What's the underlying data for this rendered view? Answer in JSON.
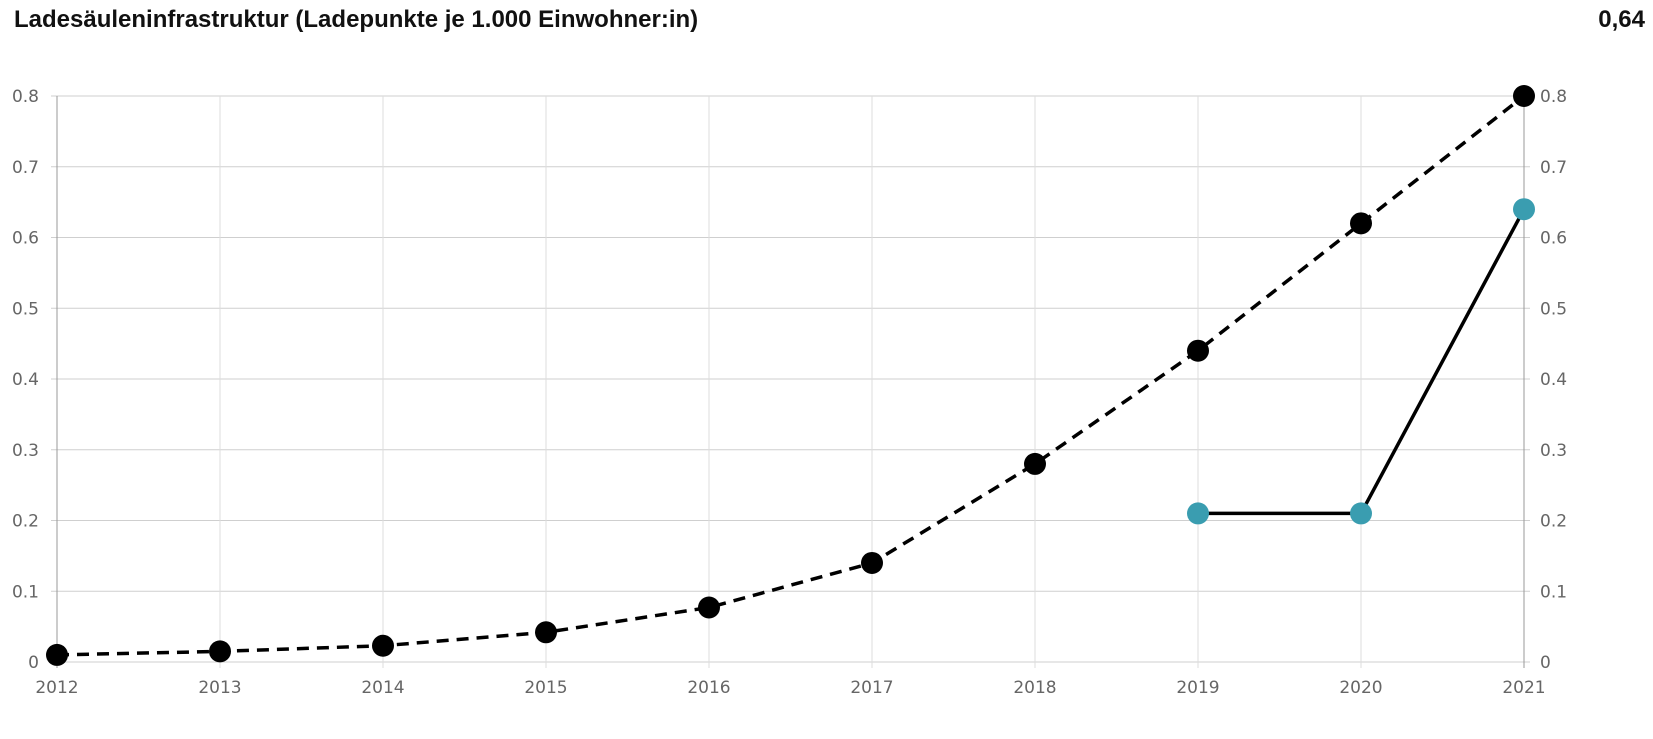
{
  "header": {
    "title": "Ladesäuleninfrastruktur (Ladepunkte je 1.000 Einwohner:in)",
    "value": "0,64"
  },
  "chart_data": {
    "type": "line",
    "title": "Ladesäuleninfrastruktur (Ladepunkte je 1.000 Einwohner:in)",
    "x": [
      2012,
      2013,
      2014,
      2015,
      2016,
      2017,
      2018,
      2019,
      2020,
      2021
    ],
    "x_tick_labels": [
      "2012",
      "2013",
      "2014",
      "2015",
      "2016",
      "2017",
      "2018",
      "2019",
      "2020",
      "2021"
    ],
    "y_tick_labels": [
      "0",
      "0.1",
      "0.2",
      "0.3",
      "0.4",
      "0.5",
      "0.6",
      "0.7",
      "0.8"
    ],
    "ylim": [
      0,
      0.8
    ],
    "grid": true,
    "series": [
      {
        "style": "dashed",
        "color": "#000000",
        "marker_color": "#000000",
        "x": [
          2012,
          2013,
          2014,
          2015,
          2016,
          2017,
          2018,
          2019,
          2020,
          2021
        ],
        "values": [
          0.01,
          0.015,
          0.023,
          0.042,
          0.077,
          0.14,
          0.28,
          0.44,
          0.62,
          0.8
        ]
      },
      {
        "style": "solid",
        "color": "#000000",
        "marker_color": "#3a9db0",
        "x": [
          2019,
          2020,
          2021
        ],
        "values": [
          0.21,
          0.21,
          0.64
        ]
      }
    ]
  }
}
